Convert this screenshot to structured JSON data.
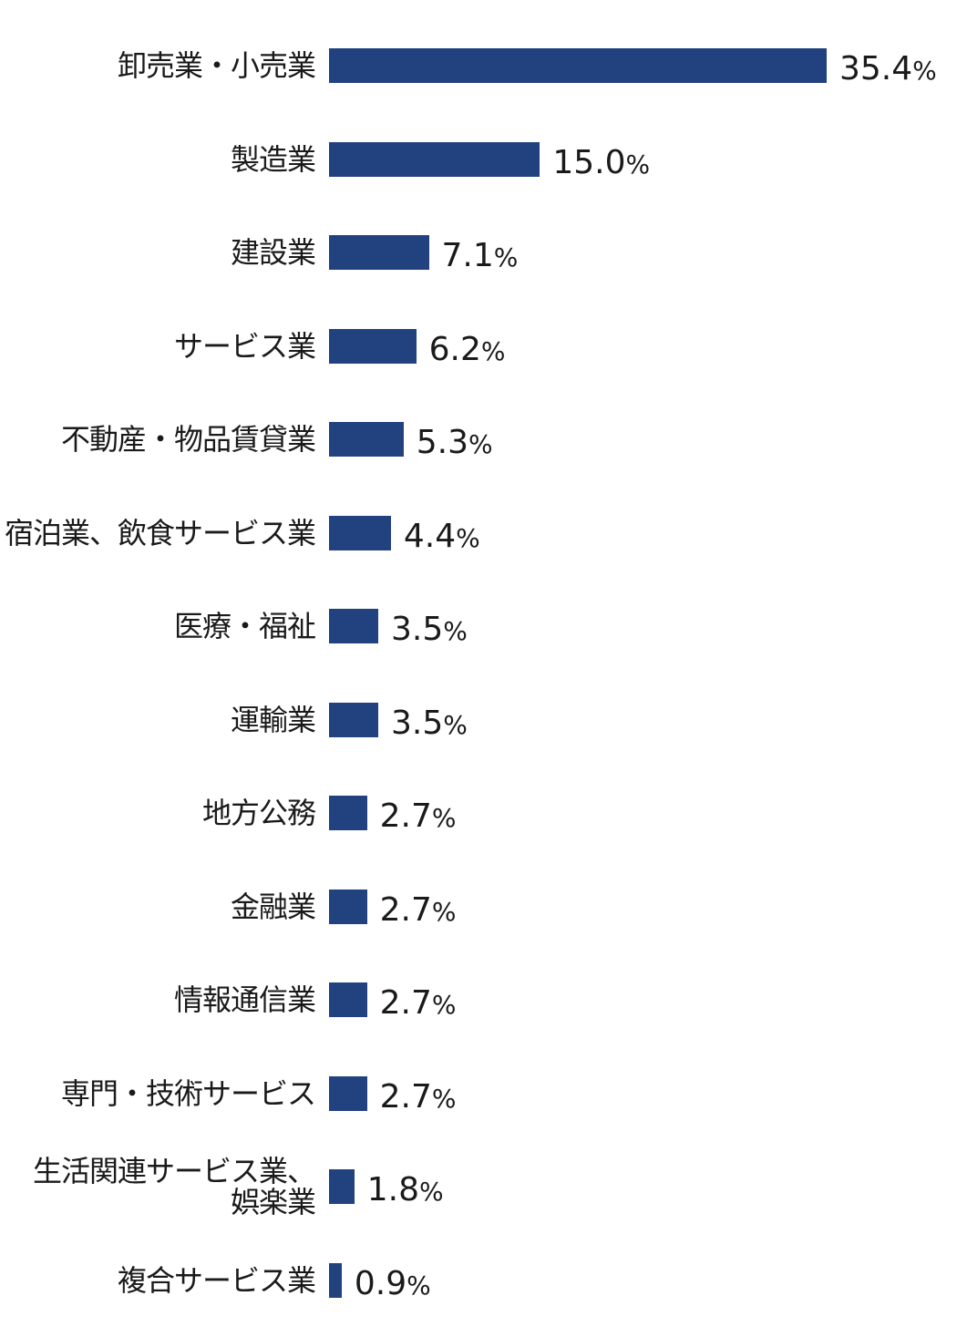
{
  "chart_data": {
    "type": "bar",
    "orientation": "horizontal",
    "unit": "%",
    "bar_color": "#21427f",
    "categories": [
      "卸売業・小売業",
      "製造業",
      "建設業",
      "サービス業",
      "不動産・物品賃貸業",
      "宿泊業、飲食サービス業",
      "医療・福祉",
      "運輸業",
      "地方公務",
      "金融業",
      "情報通信業",
      "専門・技術サービス",
      "生活関連サービス業、\n娯楽業",
      "複合サービス業"
    ],
    "values": [
      35.4,
      15.0,
      7.1,
      6.2,
      5.3,
      4.4,
      3.5,
      3.5,
      2.7,
      2.7,
      2.7,
      2.7,
      1.8,
      0.9
    ],
    "value_labels": [
      "35.4",
      "15.0",
      "7.1",
      "6.2",
      "5.3",
      "4.4",
      "3.5",
      "3.5",
      "2.7",
      "2.7",
      "2.7",
      "2.7",
      "1.8",
      "0.9"
    ],
    "xlim": [
      0,
      35.4
    ]
  }
}
